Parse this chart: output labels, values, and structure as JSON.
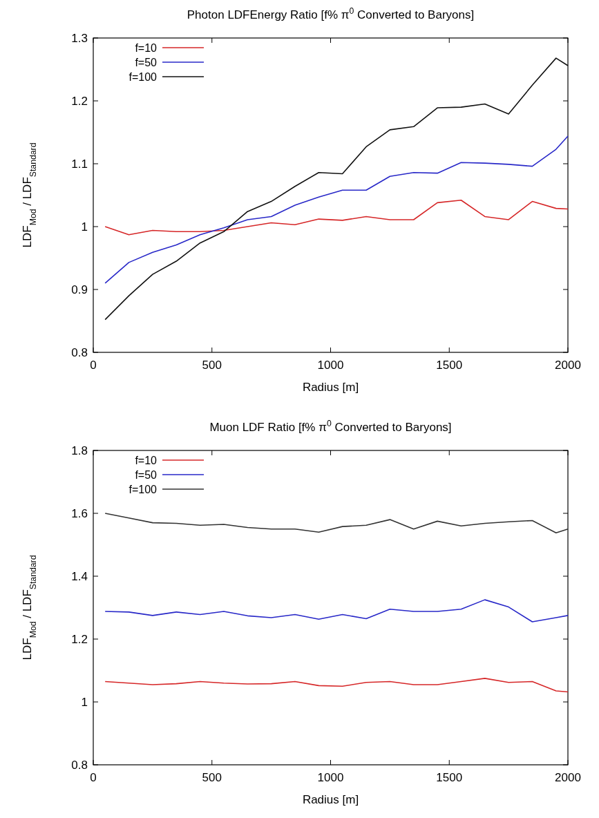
{
  "chart_data": [
    {
      "type": "line",
      "title": "Photon LDFEnergy Ratio [f% π$^{0}$ Converted to Baryons]",
      "xlabel": "Radius [m]",
      "ylabel": "LDF$_{Mod}$ / LDF$_{Standard}$",
      "x": [
        50,
        150,
        250,
        350,
        450,
        550,
        650,
        750,
        850,
        950,
        1050,
        1150,
        1250,
        1350,
        1450,
        1550,
        1650,
        1750,
        1850,
        1950,
        2000
      ],
      "xlim": [
        0,
        2000
      ],
      "xticks": [
        0,
        500,
        1000,
        1500,
        2000
      ],
      "ylim": [
        0.8,
        1.3
      ],
      "yticks": [
        0.8,
        0.9,
        1,
        1.1,
        1.2,
        1.3
      ],
      "grid": false,
      "legend": "top left",
      "marker": "none",
      "line_style": "solid",
      "series": [
        {
          "name": "f=10",
          "color": "#d62728",
          "values": [
            1.0,
            0.987,
            0.994,
            0.992,
            0.992,
            0.994,
            1.0,
            1.006,
            1.003,
            1.012,
            1.01,
            1.016,
            1.011,
            1.011,
            1.038,
            1.042,
            1.016,
            1.011,
            1.04,
            1.029,
            1.028
          ]
        },
        {
          "name": "f=50",
          "color": "#2828c8",
          "values": [
            0.91,
            0.943,
            0.959,
            0.971,
            0.987,
            0.998,
            1.011,
            1.016,
            1.034,
            1.047,
            1.058,
            1.058,
            1.08,
            1.086,
            1.085,
            1.102,
            1.101,
            1.099,
            1.096,
            1.123,
            1.144
          ]
        },
        {
          "name": "f=100",
          "color": "#111111",
          "values": [
            0.852,
            0.89,
            0.924,
            0.945,
            0.974,
            0.992,
            1.024,
            1.04,
            1.064,
            1.086,
            1.084,
            1.127,
            1.154,
            1.159,
            1.189,
            1.19,
            1.195,
            1.179,
            1.225,
            1.268,
            1.256
          ]
        }
      ]
    },
    {
      "type": "line",
      "title": "Muon LDF Ratio [f% π$^{0}$ Converted to Baryons]",
      "xlabel": "Radius [m]",
      "ylabel": "LDF$_{Mod}$ / LDF$_{Standard}$",
      "x": [
        50,
        150,
        250,
        350,
        450,
        550,
        650,
        750,
        850,
        950,
        1050,
        1150,
        1250,
        1350,
        1450,
        1550,
        1650,
        1750,
        1850,
        1950,
        2000
      ],
      "xlim": [
        0,
        2000
      ],
      "xticks": [
        0,
        500,
        1000,
        1500,
        2000
      ],
      "ylim": [
        0.8,
        1.8
      ],
      "yticks": [
        0.8,
        1,
        1.2,
        1.4,
        1.6,
        1.8
      ],
      "grid": false,
      "legend": "top left",
      "marker": "none",
      "line_style": "solid",
      "series": [
        {
          "name": "f=10",
          "color": "#d62728",
          "values": [
            1.065,
            1.06,
            1.055,
            1.058,
            1.065,
            1.06,
            1.057,
            1.058,
            1.065,
            1.052,
            1.05,
            1.062,
            1.065,
            1.055,
            1.055,
            1.065,
            1.075,
            1.062,
            1.065,
            1.035,
            1.032
          ]
        },
        {
          "name": "f=50",
          "color": "#2828c8",
          "values": [
            1.288,
            1.286,
            1.275,
            1.286,
            1.278,
            1.288,
            1.274,
            1.268,
            1.278,
            1.263,
            1.278,
            1.265,
            1.295,
            1.288,
            1.288,
            1.295,
            1.325,
            1.302,
            1.255,
            1.268,
            1.275
          ]
        },
        {
          "name": "f=100",
          "color": "#333333",
          "values": [
            1.6,
            1.585,
            1.57,
            1.568,
            1.562,
            1.565,
            1.555,
            1.55,
            1.55,
            1.54,
            1.558,
            1.562,
            1.58,
            1.55,
            1.575,
            1.56,
            1.568,
            1.573,
            1.577,
            1.538,
            1.55
          ]
        }
      ]
    }
  ]
}
